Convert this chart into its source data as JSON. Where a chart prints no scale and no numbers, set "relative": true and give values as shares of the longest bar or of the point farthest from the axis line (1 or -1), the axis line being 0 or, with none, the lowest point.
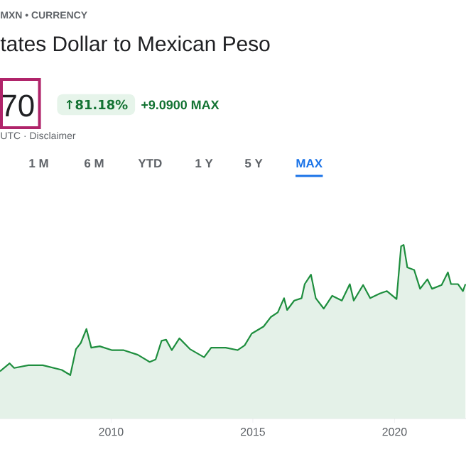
{
  "chart_data": {
    "type": "area",
    "relative": true,
    "subtitle": "MXN • CURRENCY",
    "title": "tates Dollar to Mexican Peso",
    "annotations": [
      "70",
      "↑81.18%",
      "+9.0900 MAX",
      "UTC · Disclaimer",
      "1 M",
      "6 M",
      "YTD",
      "1 Y",
      "5 Y",
      "MAX"
    ],
    "xlim": [
      2006.08,
      2022.52
    ],
    "xticks": [
      2010,
      2015,
      2020
    ],
    "x": [
      2006.08,
      2006.42,
      2006.58,
      2007.08,
      2007.59,
      2008.26,
      2008.56,
      2008.76,
      2008.93,
      2009.13,
      2009.3,
      2009.6,
      2010.02,
      2010.43,
      2010.94,
      2011.36,
      2011.57,
      2011.78,
      2011.94,
      2012.14,
      2012.41,
      2012.78,
      2013.28,
      2013.53,
      2014.04,
      2014.46,
      2014.71,
      2014.96,
      2015.38,
      2015.63,
      2015.88,
      2016.1,
      2016.21,
      2016.46,
      2016.72,
      2016.83,
      2017.05,
      2017.22,
      2017.5,
      2017.8,
      2018.14,
      2018.42,
      2018.56,
      2018.89,
      2019.14,
      2019.48,
      2019.73,
      2020.07,
      2020.23,
      2020.32,
      2020.45,
      2020.69,
      2020.9,
      2021.16,
      2021.32,
      2021.66,
      2021.88,
      2021.99,
      2022.24,
      2022.41,
      2022.5
    ],
    "series": [
      {
        "color": "#1e8e3e",
        "values": [
          0.272,
          0.318,
          0.291,
          0.307,
          0.307,
          0.28,
          0.25,
          0.4,
          0.435,
          0.516,
          0.408,
          0.416,
          0.394,
          0.394,
          0.367,
          0.326,
          0.34,
          0.448,
          0.454,
          0.394,
          0.462,
          0.4,
          0.353,
          0.408,
          0.408,
          0.394,
          0.421,
          0.489,
          0.53,
          0.584,
          0.611,
          0.693,
          0.625,
          0.679,
          0.693,
          0.774,
          0.829,
          0.693,
          0.633,
          0.707,
          0.679,
          0.774,
          0.679,
          0.769,
          0.693,
          0.72,
          0.734,
          0.688,
          0.992,
          1.0,
          0.87,
          0.856,
          0.747,
          0.802,
          0.747,
          0.769,
          0.842,
          0.774,
          0.774,
          0.734,
          0.774
        ]
      }
    ]
  }
}
